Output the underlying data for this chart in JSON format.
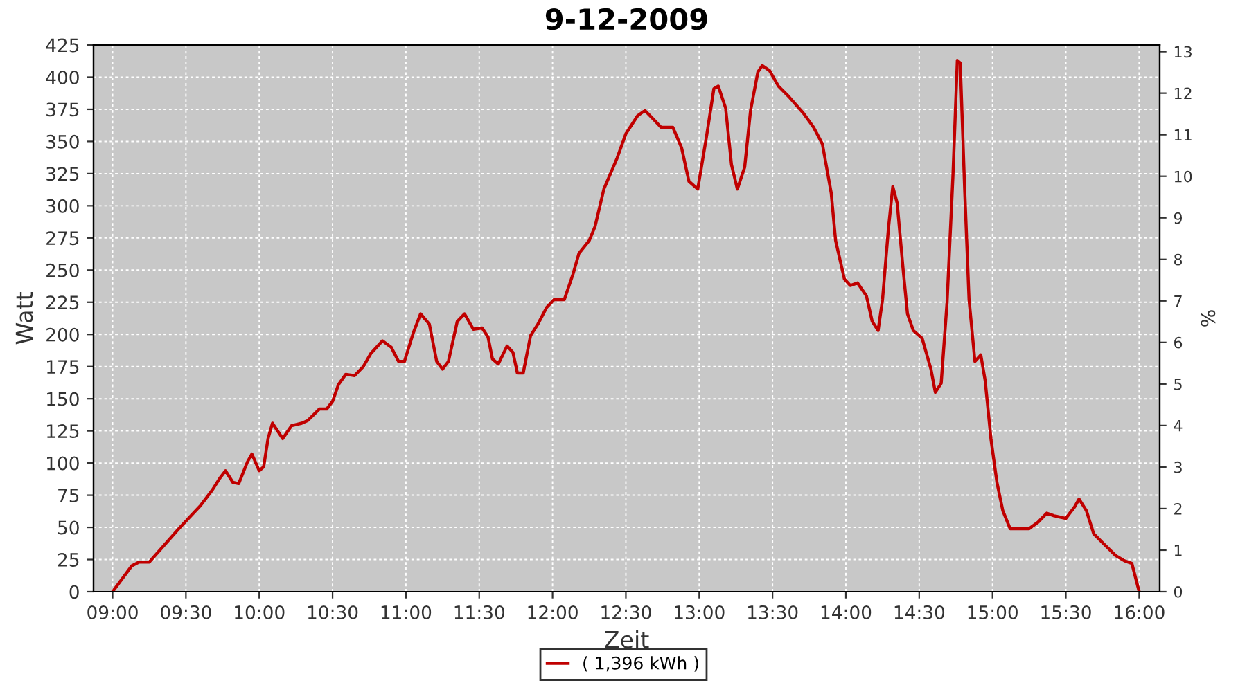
{
  "chart_data": {
    "type": "line",
    "title": "9-12-2009",
    "xlabel": "Zeit",
    "ylabel": "Watt",
    "y2label": "%",
    "x": [
      9.0,
      9.13,
      9.18,
      9.25,
      9.32,
      9.46,
      9.6,
      9.68,
      9.73,
      9.77,
      9.82,
      9.86,
      9.92,
      9.95,
      10.0,
      10.03,
      10.06,
      10.09,
      10.16,
      10.22,
      10.29,
      10.33,
      10.41,
      10.46,
      10.5,
      10.54,
      10.59,
      10.65,
      10.71,
      10.76,
      10.84,
      10.9,
      10.95,
      10.99,
      11.05,
      11.1,
      11.16,
      11.21,
      11.25,
      11.29,
      11.35,
      11.4,
      11.46,
      11.52,
      11.56,
      11.59,
      11.63,
      11.69,
      11.73,
      11.76,
      11.8,
      11.85,
      11.9,
      11.96,
      12.01,
      12.08,
      12.14,
      12.18,
      12.25,
      12.29,
      12.35,
      12.44,
      12.5,
      12.58,
      12.63,
      12.69,
      12.74,
      12.82,
      12.88,
      12.93,
      12.99,
      13.05,
      13.1,
      13.13,
      13.18,
      13.22,
      13.26,
      13.31,
      13.35,
      13.4,
      13.43,
      13.48,
      13.54,
      13.61,
      13.71,
      13.78,
      13.84,
      13.9,
      13.93,
      13.99,
      14.03,
      14.08,
      14.14,
      14.18,
      14.22,
      14.25,
      14.29,
      14.32,
      14.35,
      14.39,
      14.42,
      14.46,
      14.52,
      14.58,
      14.61,
      14.65,
      14.69,
      14.73,
      14.76,
      14.78,
      14.81,
      14.84,
      14.88,
      14.92,
      14.95,
      14.99,
      15.03,
      15.07,
      15.12,
      15.25,
      15.31,
      15.37,
      15.42,
      15.5,
      15.56,
      15.59,
      15.64,
      15.69,
      15.76,
      15.84,
      15.9,
      15.95,
      16.0
    ],
    "series": [
      {
        "name": "( 1,396 kWh )",
        "color": "#c00000",
        "values": [
          0,
          20,
          23,
          23,
          32,
          50,
          67,
          79,
          88,
          94,
          85,
          84,
          101,
          107,
          94,
          97,
          119,
          131,
          119,
          129,
          131,
          133,
          142,
          142,
          148,
          161,
          169,
          168,
          175,
          185,
          195,
          190,
          179,
          179,
          201,
          216,
          208,
          179,
          173,
          179,
          210,
          216,
          204,
          205,
          198,
          181,
          177,
          191,
          186,
          170,
          170,
          199,
          208,
          221,
          227,
          227,
          247,
          263,
          273,
          284,
          313,
          337,
          356,
          370,
          374,
          367,
          361,
          361,
          345,
          319,
          313,
          354,
          391,
          393,
          376,
          332,
          313,
          330,
          374,
          404,
          409,
          405,
          393,
          385,
          372,
          361,
          348,
          310,
          273,
          243,
          238,
          240,
          230,
          210,
          203,
          227,
          282,
          315,
          302,
          251,
          216,
          203,
          197,
          173,
          155,
          162,
          225,
          323,
          413,
          411,
          313,
          227,
          179,
          184,
          164,
          118,
          85,
          63,
          49,
          49,
          54,
          61,
          59,
          57,
          66,
          72,
          63,
          45,
          37,
          28,
          24,
          22,
          0
        ]
      }
    ],
    "xlim": [
      8.87,
      16.14
    ],
    "xticks": [
      {
        "value": 9,
        "label": "09:00"
      },
      {
        "value": 9.5,
        "label": "09:30"
      },
      {
        "value": 10,
        "label": "10:00"
      },
      {
        "value": 10.5,
        "label": "10:30"
      },
      {
        "value": 11,
        "label": "11:00"
      },
      {
        "value": 11.5,
        "label": "11:30"
      },
      {
        "value": 12,
        "label": "12:00"
      },
      {
        "value": 12.5,
        "label": "12:30"
      },
      {
        "value": 13,
        "label": "13:00"
      },
      {
        "value": 13.5,
        "label": "13:30"
      },
      {
        "value": 14,
        "label": "14:00"
      },
      {
        "value": 14.5,
        "label": "14:30"
      },
      {
        "value": 15,
        "label": "15:00"
      },
      {
        "value": 15.5,
        "label": "15:30"
      },
      {
        "value": 16,
        "label": "16:00"
      }
    ],
    "ylim": [
      0,
      425
    ],
    "yticks": [
      0,
      25,
      50,
      75,
      100,
      125,
      150,
      175,
      200,
      225,
      250,
      275,
      300,
      325,
      350,
      375,
      400,
      425
    ],
    "y2lim": [
      0,
      13.16
    ],
    "y2ticks": [
      0,
      1,
      2,
      3,
      4,
      5,
      6,
      7,
      8,
      9,
      10,
      11,
      12,
      13
    ],
    "grid": true,
    "legend": "bottom",
    "marker": "none",
    "line_style": "solid"
  }
}
